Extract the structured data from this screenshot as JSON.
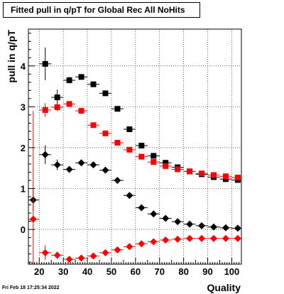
{
  "title": "Fitted pull in q/pT for Global Rec All NoHits",
  "timestamp": "Fri Feb 18 17:25:34 2022",
  "chart_data": {
    "type": "scatter",
    "title": "Fitted pull in q/pT for Global Rec All NoHits",
    "xlabel": "Quality",
    "ylabel": "pull in q/pT",
    "xlim": [
      15.5,
      104
    ],
    "ylim": [
      -0.85,
      4.9
    ],
    "xticks": [
      20,
      30,
      40,
      50,
      60,
      70,
      80,
      90,
      100
    ],
    "yticks": [
      0,
      1,
      2,
      3,
      4
    ],
    "grid": true,
    "colors": {
      "black": "#000000",
      "red": "#ff0000"
    },
    "series": [
      {
        "marker": "square",
        "color": "#000000",
        "points": [
          {
            "x": 22.5,
            "y": 4.05,
            "ylo": 3.65,
            "yhi": 4.45
          },
          {
            "x": 27.5,
            "y": 3.23,
            "ylo": 3.05,
            "yhi": 3.42
          },
          {
            "x": 32.5,
            "y": 3.65,
            "ylo": 3.57,
            "yhi": 3.73
          },
          {
            "x": 37.5,
            "y": 3.73,
            "ylo": 3.67,
            "yhi": 3.79
          },
          {
            "x": 42.5,
            "y": 3.55,
            "ylo": 3.5,
            "yhi": 3.6
          },
          {
            "x": 47.5,
            "y": 3.33,
            "ylo": 3.29,
            "yhi": 3.37
          },
          {
            "x": 52.5,
            "y": 2.95,
            "ylo": 2.91,
            "yhi": 2.99
          },
          {
            "x": 57.5,
            "y": 2.45,
            "ylo": 2.42,
            "yhi": 2.48
          },
          {
            "x": 62.5,
            "y": 2.05,
            "ylo": 2.02,
            "yhi": 2.08
          },
          {
            "x": 67.5,
            "y": 1.8,
            "ylo": 1.78,
            "yhi": 1.82
          },
          {
            "x": 72.5,
            "y": 1.63,
            "ylo": 1.61,
            "yhi": 1.65
          },
          {
            "x": 77.5,
            "y": 1.52,
            "ylo": 1.5,
            "yhi": 1.54
          },
          {
            "x": 82.5,
            "y": 1.42,
            "ylo": 1.4,
            "yhi": 1.44
          },
          {
            "x": 87.5,
            "y": 1.35,
            "ylo": 1.33,
            "yhi": 1.37
          },
          {
            "x": 92.5,
            "y": 1.28,
            "ylo": 1.26,
            "yhi": 1.3
          },
          {
            "x": 97.5,
            "y": 1.23,
            "ylo": 1.21,
            "yhi": 1.25
          },
          {
            "x": 102.5,
            "y": 1.21,
            "ylo": 1.19,
            "yhi": 1.23
          }
        ]
      },
      {
        "marker": "square",
        "color": "#ff0000",
        "points": [
          {
            "x": 22.5,
            "y": 2.92,
            "ylo": 2.75,
            "yhi": 3.09
          },
          {
            "x": 27.5,
            "y": 2.99,
            "ylo": 2.89,
            "yhi": 3.09
          },
          {
            "x": 32.5,
            "y": 3.07,
            "ylo": 3.01,
            "yhi": 3.13
          },
          {
            "x": 37.5,
            "y": 2.9,
            "ylo": 2.85,
            "yhi": 2.95
          },
          {
            "x": 42.5,
            "y": 2.55,
            "ylo": 2.51,
            "yhi": 2.59
          },
          {
            "x": 47.5,
            "y": 2.35,
            "ylo": 2.32,
            "yhi": 2.38
          },
          {
            "x": 52.5,
            "y": 2.12,
            "ylo": 2.09,
            "yhi": 2.15
          },
          {
            "x": 57.5,
            "y": 1.95,
            "ylo": 1.93,
            "yhi": 1.97
          },
          {
            "x": 62.5,
            "y": 1.78,
            "ylo": 1.76,
            "yhi": 1.8
          },
          {
            "x": 67.5,
            "y": 1.65,
            "ylo": 1.63,
            "yhi": 1.67
          },
          {
            "x": 72.5,
            "y": 1.55,
            "ylo": 1.53,
            "yhi": 1.57
          },
          {
            "x": 77.5,
            "y": 1.47,
            "ylo": 1.45,
            "yhi": 1.49
          },
          {
            "x": 82.5,
            "y": 1.42,
            "ylo": 1.4,
            "yhi": 1.44
          },
          {
            "x": 87.5,
            "y": 1.37,
            "ylo": 1.35,
            "yhi": 1.39
          },
          {
            "x": 92.5,
            "y": 1.33,
            "ylo": 1.31,
            "yhi": 1.35
          },
          {
            "x": 97.5,
            "y": 1.3,
            "ylo": 1.28,
            "yhi": 1.32
          },
          {
            "x": 102.5,
            "y": 1.27,
            "ylo": 1.25,
            "yhi": 1.29
          }
        ]
      },
      {
        "marker": "diamond",
        "color": "#000000",
        "points": [
          {
            "x": 17.5,
            "y": 0.72,
            "ylo": 0.45,
            "yhi": 0.99
          },
          {
            "x": 22.5,
            "y": 1.83,
            "ylo": 1.6,
            "yhi": 2.06
          },
          {
            "x": 27.5,
            "y": 1.58,
            "ylo": 1.45,
            "yhi": 1.71
          },
          {
            "x": 32.5,
            "y": 1.47,
            "ylo": 1.4,
            "yhi": 1.54
          },
          {
            "x": 37.5,
            "y": 1.63,
            "ylo": 1.58,
            "yhi": 1.68
          },
          {
            "x": 42.5,
            "y": 1.58,
            "ylo": 1.54,
            "yhi": 1.62
          },
          {
            "x": 47.5,
            "y": 1.45,
            "ylo": 1.42,
            "yhi": 1.48
          },
          {
            "x": 52.5,
            "y": 1.2,
            "ylo": 1.17,
            "yhi": 1.23
          },
          {
            "x": 57.5,
            "y": 0.83,
            "ylo": 0.81,
            "yhi": 0.85
          },
          {
            "x": 62.5,
            "y": 0.53,
            "ylo": 0.51,
            "yhi": 0.55
          },
          {
            "x": 67.5,
            "y": 0.38,
            "ylo": 0.36,
            "yhi": 0.4
          },
          {
            "x": 72.5,
            "y": 0.27,
            "ylo": 0.25,
            "yhi": 0.29
          },
          {
            "x": 77.5,
            "y": 0.19,
            "ylo": 0.17,
            "yhi": 0.21
          },
          {
            "x": 82.5,
            "y": 0.13,
            "ylo": 0.11,
            "yhi": 0.15
          },
          {
            "x": 87.5,
            "y": 0.09,
            "ylo": 0.07,
            "yhi": 0.11
          },
          {
            "x": 92.5,
            "y": 0.06,
            "ylo": 0.04,
            "yhi": 0.08
          },
          {
            "x": 97.5,
            "y": 0.04,
            "ylo": 0.02,
            "yhi": 0.06
          },
          {
            "x": 102.5,
            "y": 0.03,
            "ylo": 0.01,
            "yhi": 0.05
          }
        ]
      },
      {
        "marker": "diamond",
        "color": "#ff0000",
        "points": [
          {
            "x": 17.5,
            "y": 0.25,
            "ylo": -0.85,
            "yhi": 2.9
          },
          {
            "x": 22.5,
            "y": -0.57,
            "ylo": -0.75,
            "yhi": -0.39
          },
          {
            "x": 27.5,
            "y": -0.63,
            "ylo": -0.72,
            "yhi": -0.54
          },
          {
            "x": 32.5,
            "y": -0.73,
            "ylo": -0.79,
            "yhi": -0.67
          },
          {
            "x": 37.5,
            "y": -0.7,
            "ylo": -0.75,
            "yhi": -0.65
          },
          {
            "x": 42.5,
            "y": -0.65,
            "ylo": -0.69,
            "yhi": -0.61
          },
          {
            "x": 47.5,
            "y": -0.57,
            "ylo": -0.6,
            "yhi": -0.54
          },
          {
            "x": 52.5,
            "y": -0.5,
            "ylo": -0.53,
            "yhi": -0.47
          },
          {
            "x": 57.5,
            "y": -0.42,
            "ylo": -0.44,
            "yhi": -0.4
          },
          {
            "x": 62.5,
            "y": -0.35,
            "ylo": -0.37,
            "yhi": -0.33
          },
          {
            "x": 67.5,
            "y": -0.3,
            "ylo": -0.32,
            "yhi": -0.28
          },
          {
            "x": 72.5,
            "y": -0.26,
            "ylo": -0.28,
            "yhi": -0.24
          },
          {
            "x": 77.5,
            "y": -0.24,
            "ylo": -0.26,
            "yhi": -0.22
          },
          {
            "x": 82.5,
            "y": -0.22,
            "ylo": -0.24,
            "yhi": -0.2
          },
          {
            "x": 87.5,
            "y": -0.22,
            "ylo": -0.24,
            "yhi": -0.2
          },
          {
            "x": 92.5,
            "y": -0.22,
            "ylo": -0.24,
            "yhi": -0.2
          },
          {
            "x": 97.5,
            "y": -0.22,
            "ylo": -0.24,
            "yhi": -0.2
          },
          {
            "x": 102.5,
            "y": -0.22,
            "ylo": -0.24,
            "yhi": -0.2
          }
        ]
      }
    ]
  }
}
